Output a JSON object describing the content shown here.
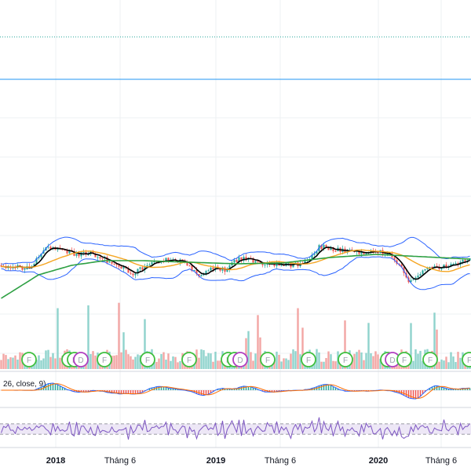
{
  "colors": {
    "background": "#ffffff",
    "grid": "#eef0f3",
    "candle_up": "#26a69a",
    "candle_down": "#ef5350",
    "bollinger": "#2962ff",
    "ma_fast": "#000000",
    "ma_mid": "#f5a623",
    "ma_long": "#2ea043",
    "hline_solid": "#2196f3",
    "hline_dotted": "#26a69a",
    "volume_up": "#8fd3cc",
    "volume_down": "#f3a6a4",
    "marker_green": "#3fbf3f",
    "marker_purple": "#b03fc0",
    "macd_line": "#2962ff",
    "signal_line": "#ff6d00",
    "rsi_line": "#7e57c2",
    "rsi_band": "#ede7f6",
    "pane_separator": "#d1d4dc",
    "axis_text": "#131722"
  },
  "chart_data": {
    "type": "candlestick",
    "x_axis": {
      "tick_labels": [
        "2018",
        "Tháng 6",
        "2019",
        "Tháng 6",
        "2020",
        "Tháng 6"
      ],
      "bold_ticks": [
        "2018",
        "2019",
        "2020"
      ]
    },
    "price_pane": {
      "shape": [
        {
          "t": 0.0,
          "y": 0.42
        },
        {
          "t": 0.03,
          "y": 0.4
        },
        {
          "t": 0.06,
          "y": 0.38
        },
        {
          "t": 0.08,
          "y": 0.55
        },
        {
          "t": 0.1,
          "y": 0.66
        },
        {
          "t": 0.13,
          "y": 0.62
        },
        {
          "t": 0.16,
          "y": 0.55
        },
        {
          "t": 0.19,
          "y": 0.58
        },
        {
          "t": 0.22,
          "y": 0.5
        },
        {
          "t": 0.25,
          "y": 0.4
        },
        {
          "t": 0.28,
          "y": 0.32
        },
        {
          "t": 0.3,
          "y": 0.38
        },
        {
          "t": 0.33,
          "y": 0.48
        },
        {
          "t": 0.36,
          "y": 0.5
        },
        {
          "t": 0.38,
          "y": 0.48
        },
        {
          "t": 0.4,
          "y": 0.42
        },
        {
          "t": 0.42,
          "y": 0.3
        },
        {
          "t": 0.44,
          "y": 0.36
        },
        {
          "t": 0.46,
          "y": 0.38
        },
        {
          "t": 0.48,
          "y": 0.36
        },
        {
          "t": 0.5,
          "y": 0.48
        },
        {
          "t": 0.52,
          "y": 0.52
        },
        {
          "t": 0.54,
          "y": 0.47
        },
        {
          "t": 0.56,
          "y": 0.42
        },
        {
          "t": 0.58,
          "y": 0.44
        },
        {
          "t": 0.6,
          "y": 0.44
        },
        {
          "t": 0.62,
          "y": 0.42
        },
        {
          "t": 0.65,
          "y": 0.46
        },
        {
          "t": 0.68,
          "y": 0.66
        },
        {
          "t": 0.71,
          "y": 0.63
        },
        {
          "t": 0.74,
          "y": 0.6
        },
        {
          "t": 0.77,
          "y": 0.58
        },
        {
          "t": 0.8,
          "y": 0.6
        },
        {
          "t": 0.83,
          "y": 0.55
        },
        {
          "t": 0.85,
          "y": 0.42
        },
        {
          "t": 0.87,
          "y": 0.2
        },
        {
          "t": 0.89,
          "y": 0.32
        },
        {
          "t": 0.91,
          "y": 0.38
        },
        {
          "t": 0.94,
          "y": 0.4
        },
        {
          "t": 0.97,
          "y": 0.44
        },
        {
          "t": 1.0,
          "y": 0.5
        }
      ],
      "long_ma_shape": [
        {
          "t": 0.0,
          "y": 0.0
        },
        {
          "t": 0.08,
          "y": 0.3
        },
        {
          "t": 0.15,
          "y": 0.42
        },
        {
          "t": 0.22,
          "y": 0.48
        },
        {
          "t": 0.3,
          "y": 0.48
        },
        {
          "t": 0.4,
          "y": 0.46
        },
        {
          "t": 0.5,
          "y": 0.44
        },
        {
          "t": 0.6,
          "y": 0.45
        },
        {
          "t": 0.7,
          "y": 0.52
        },
        {
          "t": 0.8,
          "y": 0.56
        },
        {
          "t": 0.9,
          "y": 0.53
        },
        {
          "t": 1.0,
          "y": 0.5
        }
      ]
    },
    "event_markers": [
      {
        "label": "F",
        "type": "green"
      },
      {
        "label": "F",
        "type": "green"
      },
      {
        "label": "F",
        "type": "green"
      },
      {
        "label": "D",
        "type": "purple"
      },
      {
        "label": "F",
        "type": "green"
      },
      {
        "label": "F",
        "type": "green"
      },
      {
        "label": "F",
        "type": "green"
      },
      {
        "label": "F",
        "type": "green"
      },
      {
        "label": "F",
        "type": "green"
      },
      {
        "label": "D",
        "type": "purple"
      },
      {
        "label": "F",
        "type": "green"
      },
      {
        "label": "F",
        "type": "green"
      },
      {
        "label": "F",
        "type": "green"
      },
      {
        "label": "F",
        "type": "green"
      },
      {
        "label": "D",
        "type": "purple"
      },
      {
        "label": "F",
        "type": "green"
      },
      {
        "label": "F",
        "type": "green"
      },
      {
        "label": "F",
        "type": "green"
      }
    ],
    "macd_pane": {
      "legend": "26, close, 9)"
    },
    "rsi_pane": {
      "band": [
        0.3,
        0.7
      ]
    }
  }
}
